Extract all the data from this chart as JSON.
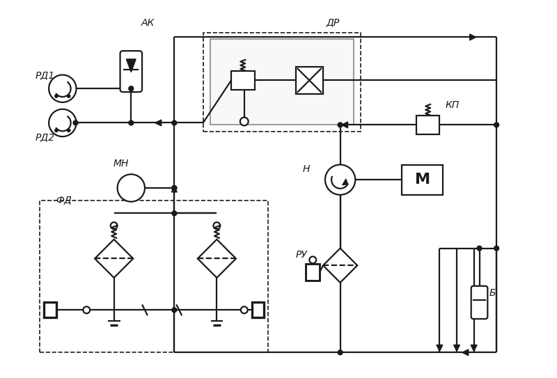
{
  "bg_color": "#ffffff",
  "line_color": "#1a1a1a",
  "lw": 1.6,
  "label_AK": "АК",
  "label_RD1": "РД1",
  "label_RD2": "РД2",
  "label_MN": "МН",
  "label_FD": "ФД",
  "label_DR": "ДР",
  "label_KP": "КП",
  "label_N": "Н",
  "label_RU": "РУ",
  "label_M": "М",
  "label_B": "Б"
}
